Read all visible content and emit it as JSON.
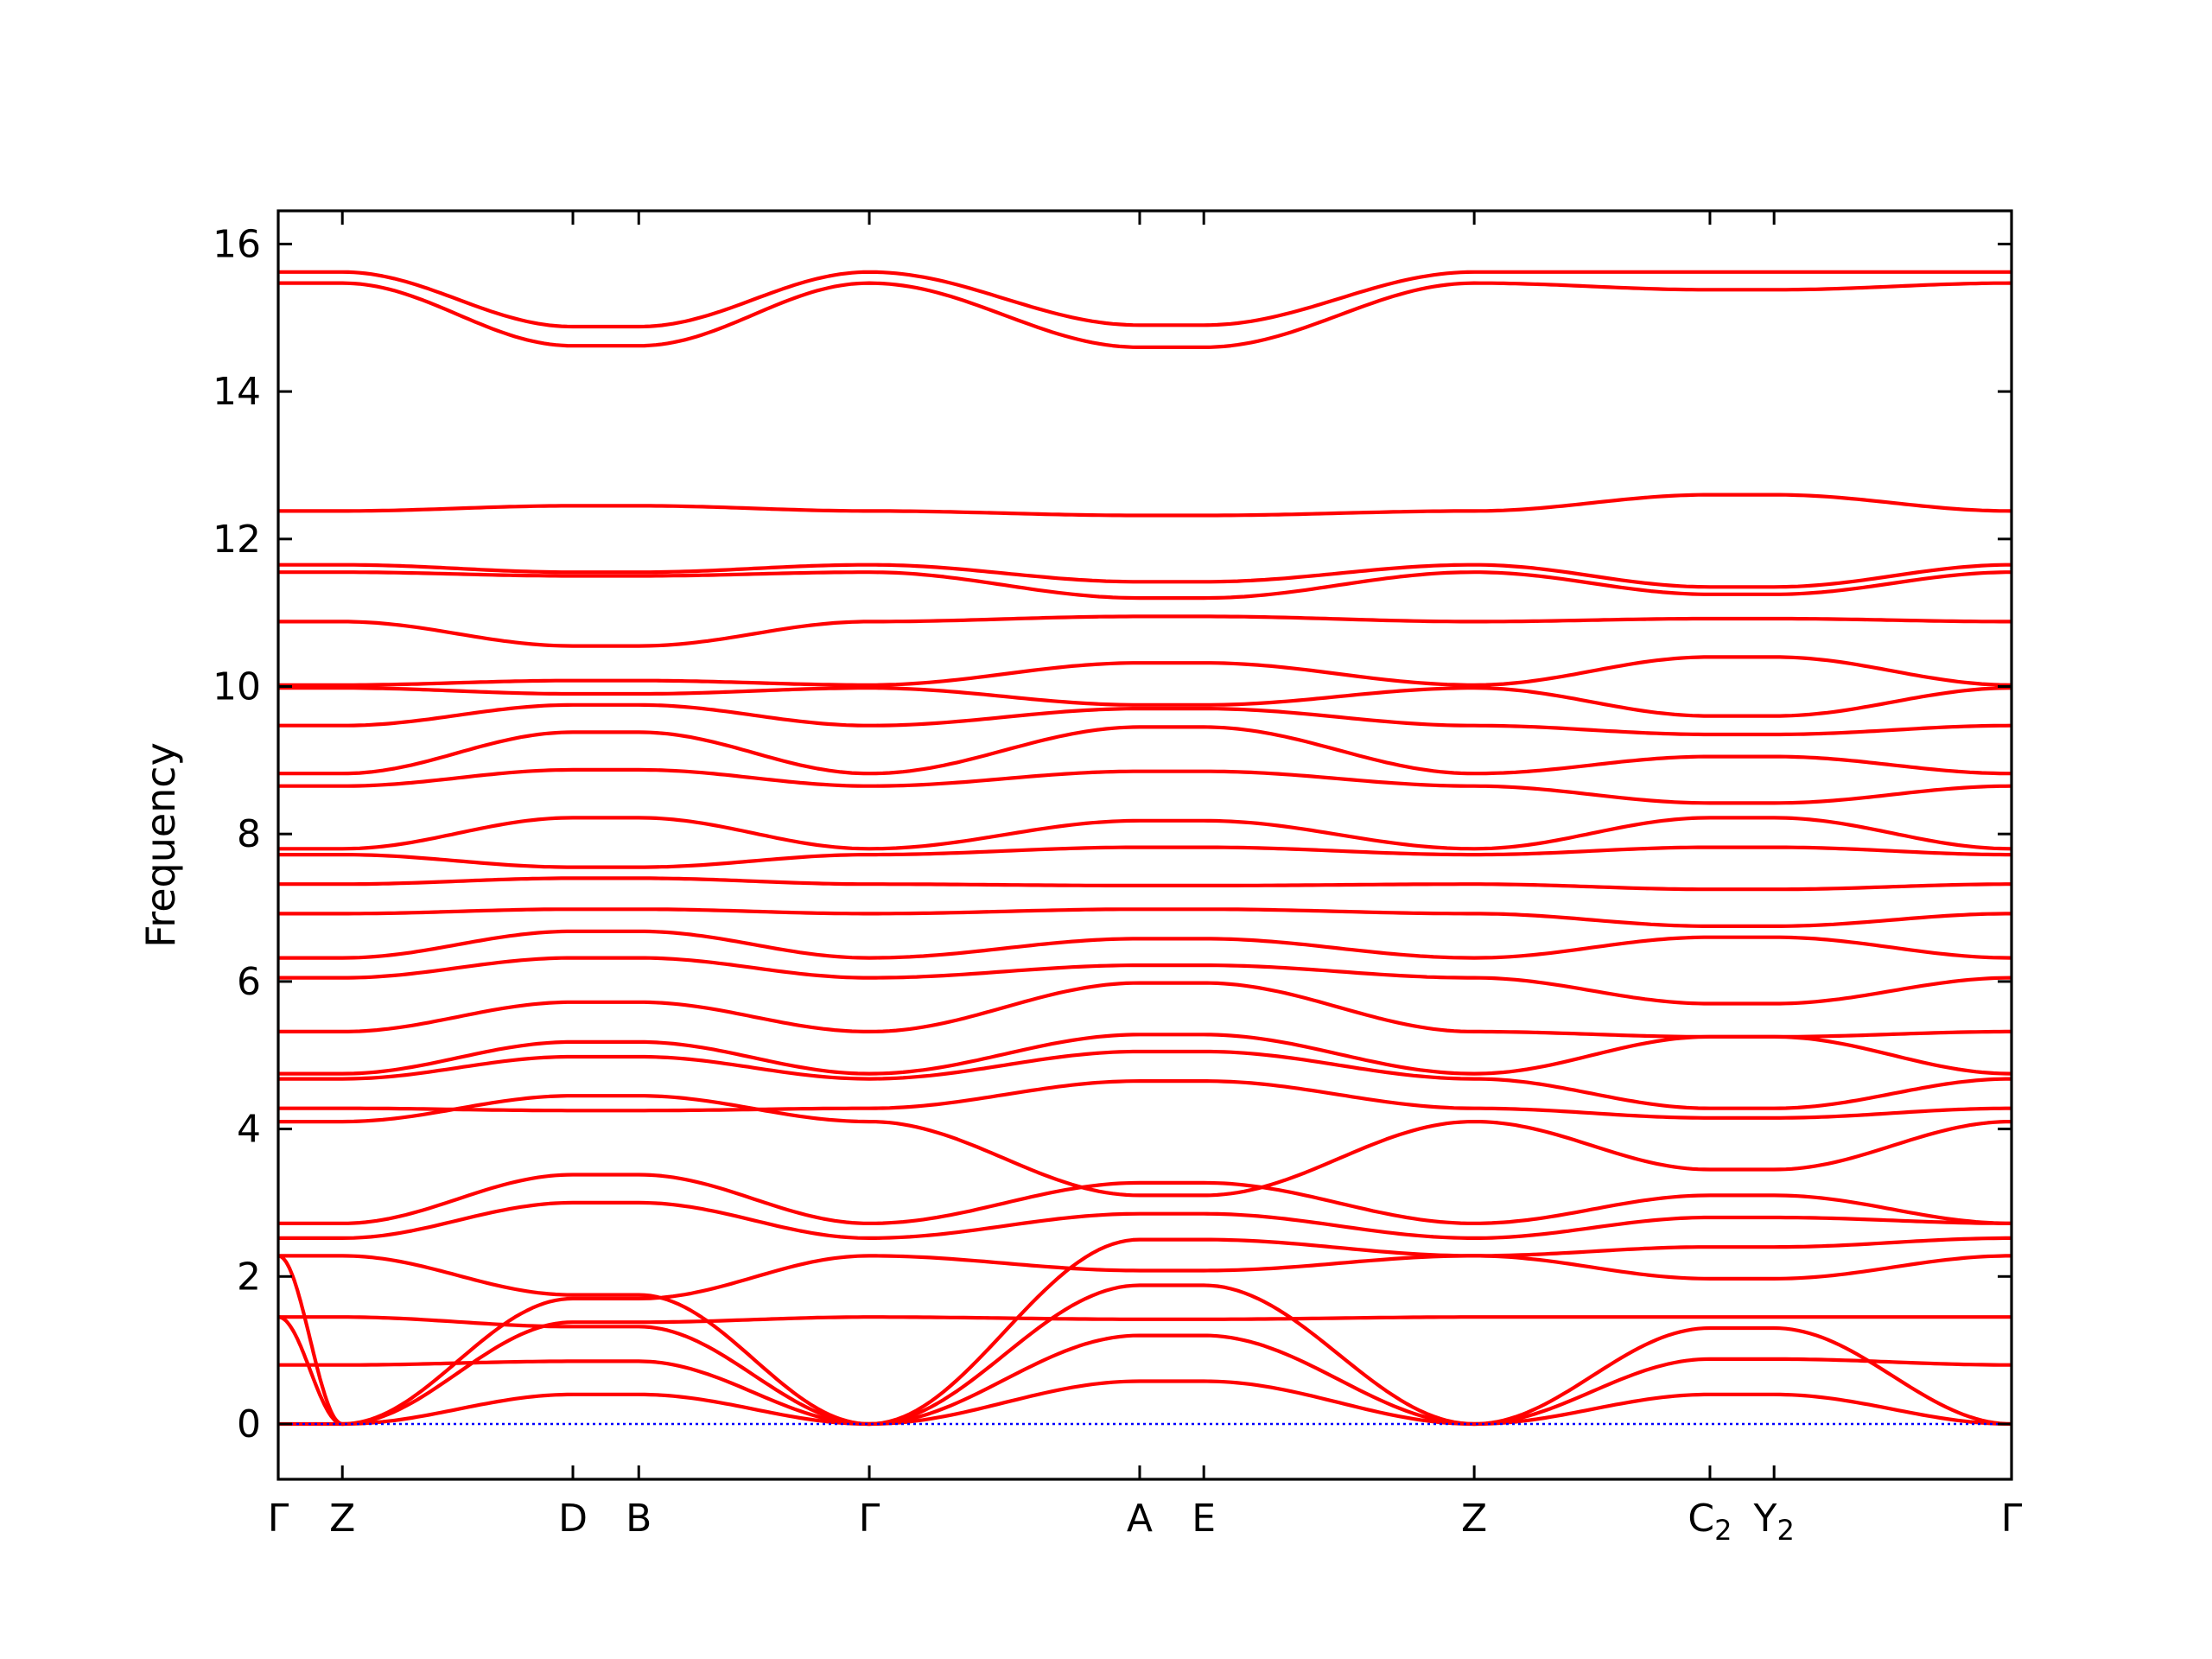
{
  "chart_data": {
    "type": "line",
    "title": "",
    "xlabel": "",
    "ylabel": "Frequency",
    "ylim": [
      -0.75,
      16.45
    ],
    "xlim": [
      0,
      1
    ],
    "grid": false,
    "legend": "none",
    "colors": {
      "bands": "#ff0000",
      "zero_line": "#0000ff",
      "axes": "#000000"
    },
    "yticks": [
      0,
      2,
      4,
      6,
      8,
      10,
      12,
      14,
      16
    ],
    "kpoints": [
      {
        "label": "Γ",
        "pos": 0.0
      },
      {
        "label": "Z",
        "pos": 0.037
      },
      {
        "label": "D",
        "pos": 0.17
      },
      {
        "label": "B",
        "pos": 0.208
      },
      {
        "label": "Γ",
        "pos": 0.341
      },
      {
        "label": "A",
        "pos": 0.497
      },
      {
        "label": "E",
        "pos": 0.534
      },
      {
        "label": "Z",
        "pos": 0.69
      },
      {
        "label": "C",
        "sub": "2",
        "pos": 0.826
      },
      {
        "label": "Y",
        "sub": "2",
        "pos": 0.863
      },
      {
        "label": "Γ",
        "pos": 1.0
      }
    ],
    "bands": [
      [
        0.0,
        0.0,
        0.4,
        0.4,
        0.0,
        0.58,
        0.58,
        0.0,
        0.4,
        0.4,
        0.0
      ],
      [
        0.8,
        0.8,
        0.85,
        0.85,
        0.0,
        1.2,
        1.2,
        0.0,
        0.88,
        0.88,
        0.8
      ],
      [
        1.45,
        1.45,
        1.32,
        1.32,
        0.0,
        1.88,
        1.88,
        0.0,
        1.3,
        1.3,
        0.0
      ],
      [
        1.45,
        0.0,
        1.38,
        1.38,
        1.45,
        1.42,
        1.42,
        1.45,
        1.45,
        1.45,
        1.45
      ],
      [
        2.28,
        0.0,
        1.7,
        1.7,
        2.28,
        2.08,
        2.08,
        2.28,
        1.97,
        1.97,
        2.28
      ],
      [
        2.28,
        2.28,
        1.75,
        1.75,
        0.0,
        2.5,
        2.5,
        2.28,
        2.4,
        2.4,
        2.52
      ],
      [
        2.52,
        2.52,
        3.0,
        3.0,
        2.52,
        2.85,
        2.85,
        2.52,
        2.8,
        2.8,
        2.72
      ],
      [
        2.72,
        2.72,
        3.38,
        3.38,
        2.72,
        3.27,
        3.27,
        2.72,
        3.1,
        3.1,
        2.72
      ],
      [
        4.1,
        4.1,
        4.45,
        4.45,
        4.1,
        3.1,
        3.1,
        4.1,
        3.45,
        3.45,
        4.1
      ],
      [
        4.28,
        4.28,
        4.25,
        4.25,
        4.28,
        4.65,
        4.65,
        4.28,
        4.15,
        4.15,
        4.28
      ],
      [
        4.68,
        4.68,
        4.98,
        4.98,
        4.68,
        5.05,
        5.05,
        4.68,
        4.28,
        4.28,
        4.68
      ],
      [
        4.75,
        4.75,
        5.18,
        5.18,
        4.75,
        5.28,
        5.28,
        4.75,
        5.25,
        5.25,
        4.75
      ],
      [
        5.32,
        5.32,
        5.72,
        5.72,
        5.32,
        5.98,
        5.98,
        5.32,
        5.25,
        5.25,
        5.32
      ],
      [
        6.05,
        6.05,
        6.32,
        6.32,
        6.05,
        6.22,
        6.22,
        6.05,
        5.7,
        5.7,
        6.05
      ],
      [
        6.32,
        6.32,
        6.68,
        6.68,
        6.32,
        6.58,
        6.58,
        6.32,
        6.6,
        6.6,
        6.32
      ],
      [
        6.92,
        6.92,
        6.98,
        6.98,
        6.92,
        6.98,
        6.98,
        6.92,
        6.75,
        6.75,
        6.92
      ],
      [
        7.32,
        7.32,
        7.4,
        7.4,
        7.32,
        7.3,
        7.3,
        7.32,
        7.25,
        7.25,
        7.32
      ],
      [
        7.72,
        7.72,
        7.55,
        7.55,
        7.72,
        7.82,
        7.82,
        7.72,
        7.82,
        7.82,
        7.72
      ],
      [
        7.8,
        7.8,
        8.22,
        8.22,
        7.8,
        8.18,
        8.18,
        7.8,
        8.22,
        8.22,
        7.8
      ],
      [
        8.65,
        8.65,
        8.87,
        8.87,
        8.65,
        8.85,
        8.85,
        8.65,
        8.42,
        8.42,
        8.65
      ],
      [
        8.82,
        8.82,
        9.38,
        9.38,
        8.82,
        9.45,
        9.45,
        8.82,
        9.05,
        9.05,
        8.82
      ],
      [
        9.47,
        9.47,
        9.75,
        9.75,
        9.47,
        9.7,
        9.7,
        9.47,
        9.35,
        9.35,
        9.47
      ],
      [
        9.98,
        9.98,
        9.9,
        9.9,
        9.98,
        9.75,
        9.75,
        9.98,
        9.6,
        9.6,
        9.98
      ],
      [
        10.02,
        10.02,
        10.08,
        10.08,
        10.02,
        10.32,
        10.32,
        10.02,
        10.4,
        10.4,
        10.02
      ],
      [
        10.88,
        10.88,
        10.55,
        10.55,
        10.88,
        10.95,
        10.95,
        10.88,
        10.92,
        10.92,
        10.88
      ],
      [
        11.55,
        11.55,
        11.5,
        11.5,
        11.55,
        11.2,
        11.2,
        11.55,
        11.25,
        11.25,
        11.55
      ],
      [
        11.65,
        11.65,
        11.55,
        11.55,
        11.65,
        11.42,
        11.42,
        11.65,
        11.35,
        11.35,
        11.65
      ],
      [
        12.38,
        12.38,
        12.45,
        12.45,
        12.38,
        12.32,
        12.32,
        12.38,
        12.6,
        12.6,
        12.38
      ],
      [
        15.47,
        15.47,
        14.62,
        14.62,
        15.47,
        14.6,
        14.6,
        15.47,
        15.38,
        15.38,
        15.47
      ],
      [
        15.62,
        15.62,
        14.88,
        14.88,
        15.62,
        14.9,
        14.9,
        15.62,
        15.62,
        15.62,
        15.62
      ]
    ]
  }
}
